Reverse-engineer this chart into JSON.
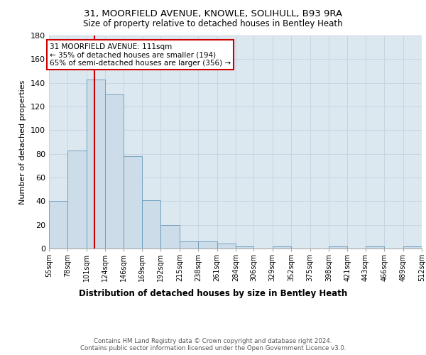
{
  "title_line1": "31, MOORFIELD AVENUE, KNOWLE, SOLIHULL, B93 9RA",
  "title_line2": "Size of property relative to detached houses in Bentley Heath",
  "xlabel": "Distribution of detached houses by size in Bentley Heath",
  "ylabel": "Number of detached properties",
  "bar_values": [
    40,
    83,
    143,
    130,
    78,
    41,
    20,
    6,
    6,
    4,
    2,
    0,
    2,
    0,
    0,
    2,
    0,
    2,
    0,
    2
  ],
  "bar_labels": [
    "55sqm",
    "78sqm",
    "101sqm",
    "124sqm",
    "146sqm",
    "169sqm",
    "192sqm",
    "215sqm",
    "238sqm",
    "261sqm",
    "284sqm",
    "306sqm",
    "329sqm",
    "352sqm",
    "375sqm",
    "398sqm",
    "421sqm",
    "443sqm",
    "466sqm",
    "489sqm",
    "512sqm"
  ],
  "bin_edges": [
    55,
    78,
    101,
    124,
    146,
    169,
    192,
    215,
    238,
    261,
    284,
    306,
    329,
    352,
    375,
    398,
    421,
    443,
    466,
    489,
    512
  ],
  "property_size": 111,
  "bar_color": "#ccdce8",
  "bar_edge_color": "#6699bb",
  "vline_color": "#cc0000",
  "annotation_text": "31 MOORFIELD AVENUE: 111sqm\n← 35% of detached houses are smaller (194)\n65% of semi-detached houses are larger (356) →",
  "annotation_box_color": "white",
  "annotation_box_edge": "#cc0000",
  "grid_color": "#c8d4e0",
  "background_color": "#dce8f0",
  "footer_line1": "Contains HM Land Registry data © Crown copyright and database right 2024.",
  "footer_line2": "Contains public sector information licensed under the Open Government Licence v3.0.",
  "ylim": [
    0,
    180
  ],
  "yticks": [
    0,
    20,
    40,
    60,
    80,
    100,
    120,
    140,
    160,
    180
  ]
}
